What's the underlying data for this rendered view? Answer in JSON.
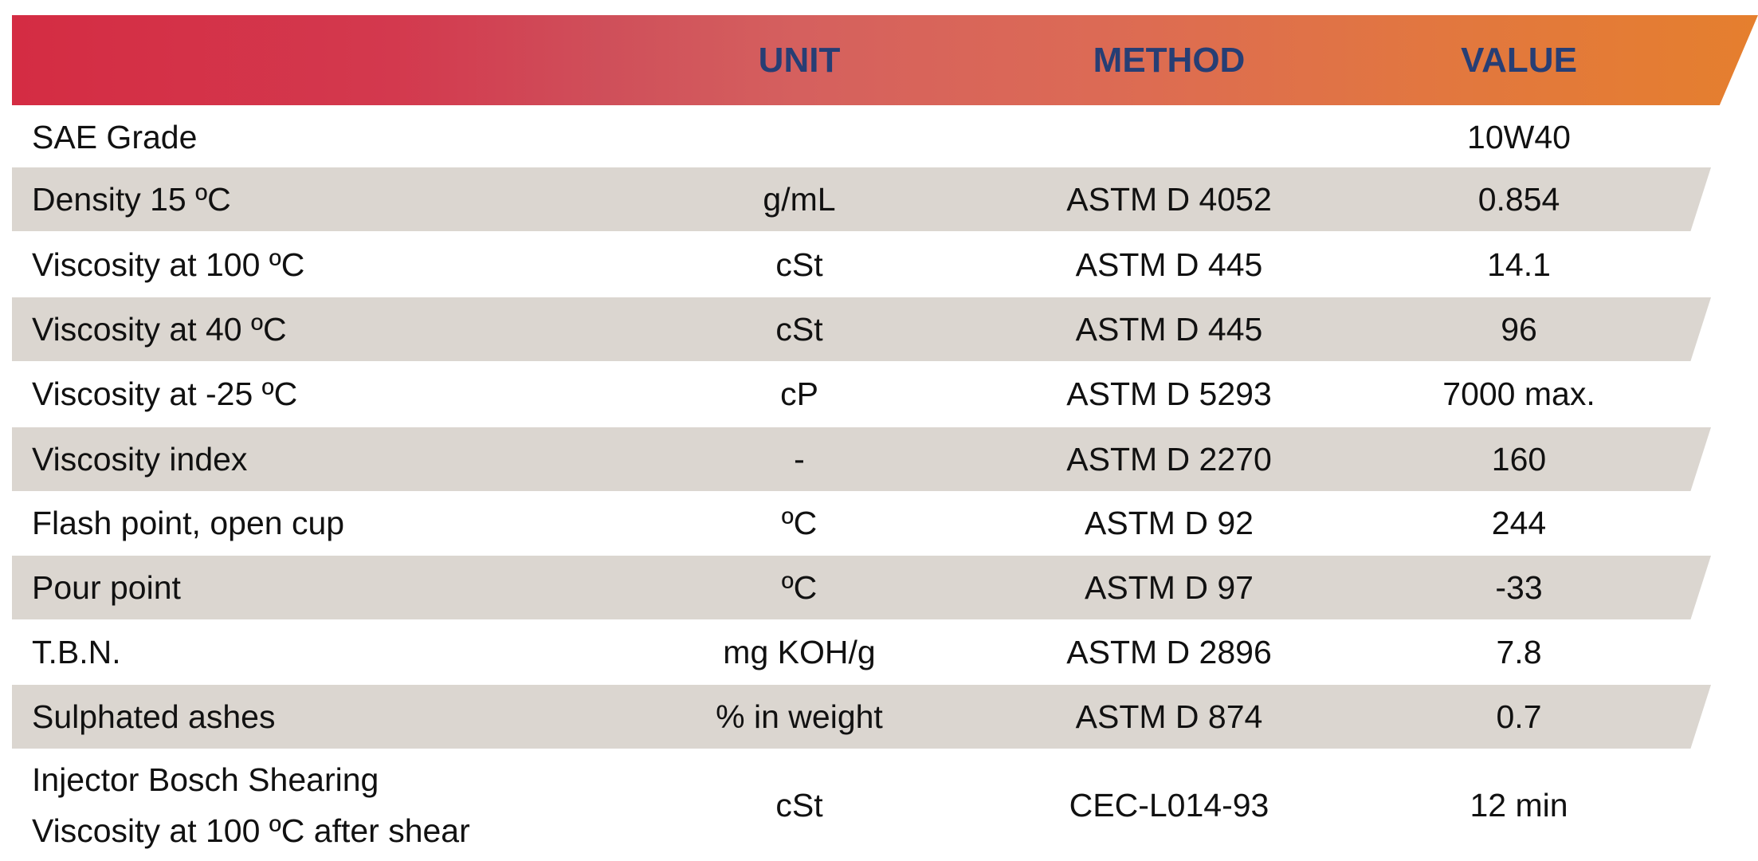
{
  "header": {
    "unit": "UNIT",
    "method": "METHOD",
    "value": "VALUE"
  },
  "rows": [
    {
      "label": "SAE Grade",
      "unit": "",
      "method": "",
      "value": "10W40"
    },
    {
      "label": "Density 15 ºC",
      "unit": "g/mL",
      "method": "ASTM D 4052",
      "value": "0.854"
    },
    {
      "label": "Viscosity at 100 ºC",
      "unit": "cSt",
      "method": "ASTM D 445",
      "value": "14.1"
    },
    {
      "label": "Viscosity at 40 ºC",
      "unit": "cSt",
      "method": "ASTM D 445",
      "value": "96"
    },
    {
      "label": "Viscosity at -25 ºC",
      "unit": "cP",
      "method": "ASTM D 5293",
      "value": "7000 max."
    },
    {
      "label": "Viscosity index",
      "unit": "-",
      "method": "ASTM D 2270",
      "value": "160"
    },
    {
      "label": "Flash point, open cup",
      "unit": "ºC",
      "method": "ASTM D 92",
      "value": "244"
    },
    {
      "label": "Pour point",
      "unit": "ºC",
      "method": "ASTM D 97",
      "value": "-33"
    },
    {
      "label": "T.B.N.",
      "unit": "mg KOH/g",
      "method": "ASTM D 2896",
      "value": "7.8"
    },
    {
      "label": "Sulphated ashes",
      "unit": "% in weight",
      "method": "ASTM D 874",
      "value": "0.7"
    },
    {
      "label_line1": "Injector Bosch Shearing",
      "label_line2": "Viscosity at 100 ºC after shear",
      "unit": "cSt",
      "method": "CEC-L014-93",
      "value": "12 min"
    }
  ]
}
